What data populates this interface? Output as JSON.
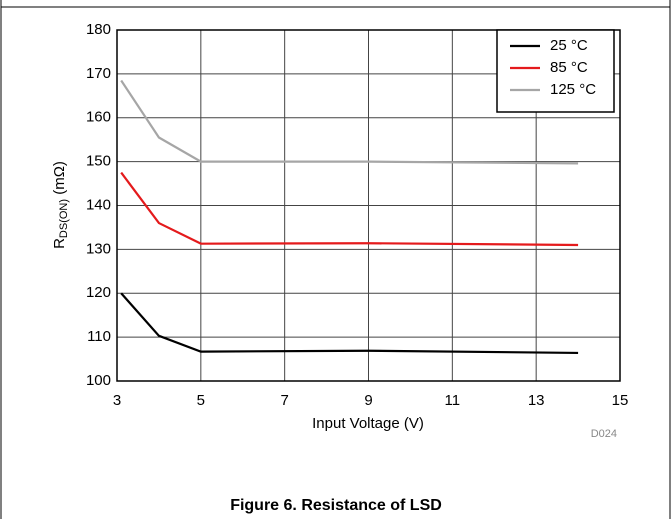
{
  "chart_data": {
    "type": "line",
    "caption": "Figure 6. Resistance of LSD",
    "annotation": "D024",
    "x_label": "Input Voltage (V)",
    "y_label": {
      "main": "R",
      "sub": "DS(ON)",
      "rest": " (mΩ)"
    },
    "x": [
      3.1,
      4,
      5,
      9,
      14
    ],
    "series": [
      {
        "name": "25 °C",
        "color": "#000000",
        "values": [
          120,
          110.3,
          106.7,
          106.9,
          106.4
        ]
      },
      {
        "name": "85 °C",
        "color": "#e41a1c",
        "values": [
          147.5,
          136,
          131.3,
          131.4,
          131
        ]
      },
      {
        "name": "125 °C",
        "color": "#a6a6a6",
        "values": [
          168.5,
          155.5,
          150,
          150,
          149.6
        ]
      }
    ],
    "xlim": [
      3,
      15
    ],
    "xticks": [
      3,
      5,
      7,
      9,
      11,
      13,
      15
    ],
    "ylim": [
      100,
      180
    ],
    "yticks": [
      100,
      110,
      120,
      130,
      140,
      150,
      160,
      170,
      180
    ],
    "grid": true,
    "legend": "upper right"
  }
}
